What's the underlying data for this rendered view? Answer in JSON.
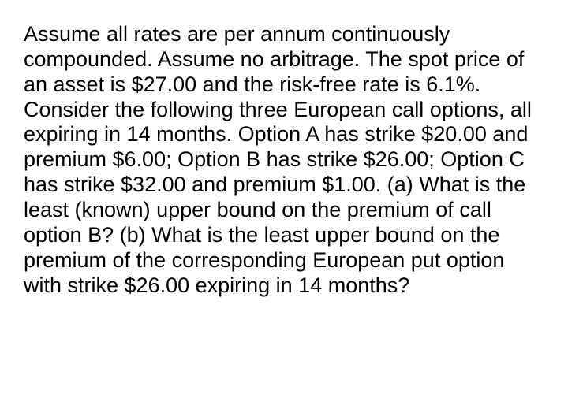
{
  "problem": {
    "text": "Assume all rates are per annum continuously compounded. Assume no arbitrage. The spot price of an asset is $27.00 and the risk-free rate is 6.1%. Consider the following three European call options, all expiring in 14 months. Option A has strike $20.00 and premium $6.00; Option B has strike $26.00; Option C has strike $32.00 and premium $1.00. (a) What is the least (known) upper bound on the premium of call option B? (b) What is the least upper bound on the premium of the corresponding European put option with strike $26.00 expiring in 14 months?",
    "font_size": 27,
    "line_height": 1.18,
    "text_color": "#000000",
    "background_color": "#ffffff",
    "font_family": "Arial, Helvetica, sans-serif"
  }
}
